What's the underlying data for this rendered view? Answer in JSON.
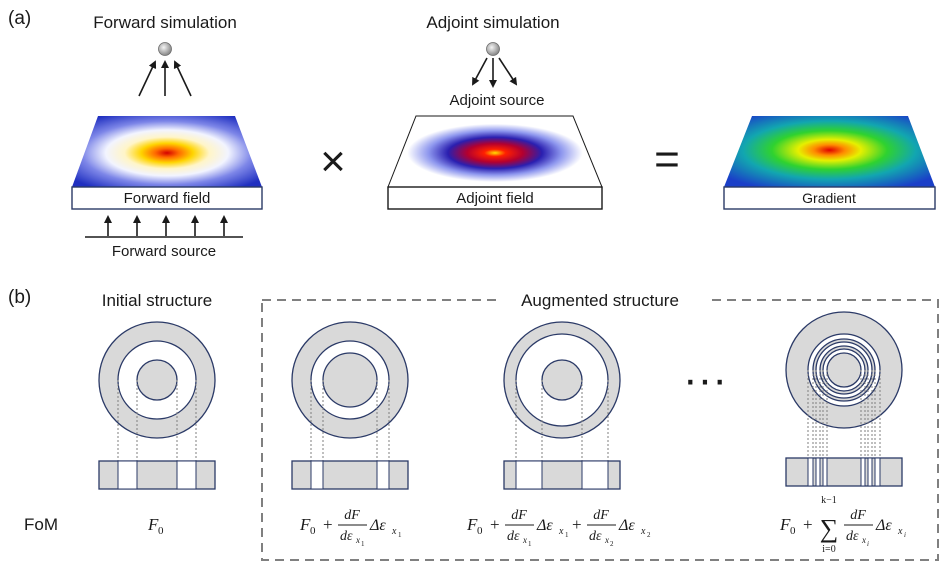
{
  "panel_a": {
    "label": "(a)",
    "forward_title": "Forward simulation",
    "adjoint_title": "Adjoint simulation",
    "adjoint_source": "Adjoint source",
    "forward_field": "Forward field",
    "adjoint_field": "Adjoint field",
    "gradient": "Gradient",
    "forward_source": "Forward source",
    "times": "×",
    "equals": "="
  },
  "panel_b": {
    "label": "(b)",
    "initial_title": "Initial structure",
    "augmented_title": "Augmented structure",
    "ellipsis": "···",
    "fom_label": "FoM",
    "formulas": {
      "f0": "F",
      "f0_sub": "0",
      "plus": "+",
      "dF": "dF",
      "d_eps": "dε",
      "x": "x",
      "sub1": "1",
      "sub2": "2",
      "subi": "i",
      "delta_eps": "Δε",
      "sum": "∑",
      "sum_upper": "k−1",
      "sum_lower": "i=0"
    }
  },
  "colors": {
    "ring_fill": "#d9d9d9",
    "ring_stroke": "#2b3a67",
    "dashed_box": "#808080",
    "dotted_line": "#7f7f7f"
  }
}
